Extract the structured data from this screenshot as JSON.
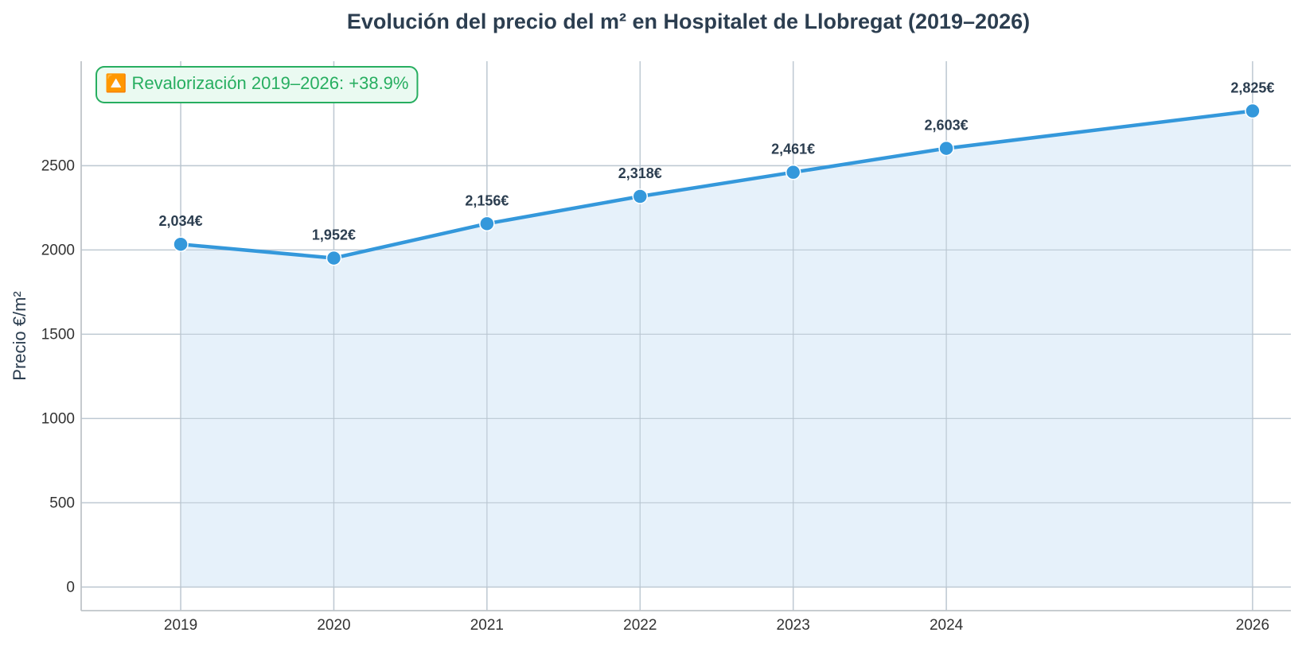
{
  "chart_data": {
    "type": "area",
    "title": "Evolución del precio del m² en Hospitalet de Llobregat (2019–2026)",
    "xlabel": "",
    "ylabel": "Precio €/m²",
    "x": [
      2019,
      2020,
      2021,
      2022,
      2023,
      2024,
      2026
    ],
    "x_tick_labels": [
      "2019",
      "2020",
      "2021",
      "2022",
      "2023",
      "2024",
      "2026"
    ],
    "values": [
      2034,
      1952,
      2156,
      2318,
      2461,
      2603,
      2825
    ],
    "data_labels": [
      "2,034€",
      "1,952€",
      "2,156€",
      "2,318€",
      "2,461€",
      "2,603€",
      "2,825€"
    ],
    "y_ticks": [
      0,
      500,
      1000,
      1500,
      2000,
      2500
    ],
    "y_tick_labels": [
      "0",
      "500",
      "1000",
      "1500",
      "2000",
      "2500"
    ],
    "ylim": [
      -140,
      3120
    ],
    "xlim": [
      2018.35,
      2026.25
    ],
    "grid": true,
    "annotation": "🔼 Revalorización 2019–2026: +38.9%",
    "colors": {
      "line": "#3498db",
      "fill": "#e3f0f9",
      "title": "#2c3e50",
      "data_label": "#2c3e50",
      "grid": "#cfd5db",
      "annotation_text": "#27ae60",
      "annotation_border": "#27ae60",
      "annotation_bg": "#eafaf1"
    }
  }
}
